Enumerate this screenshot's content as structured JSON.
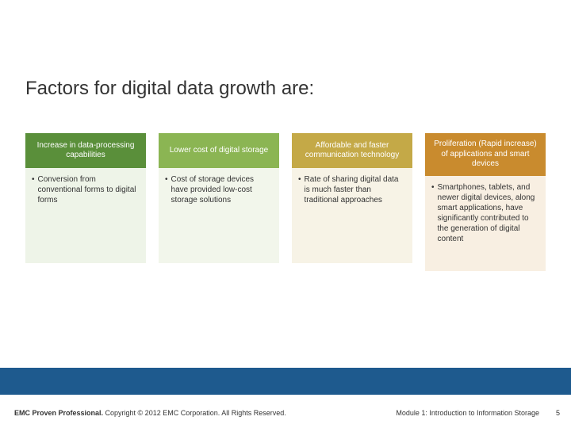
{
  "title": "Factors for digital data growth are:",
  "columns": [
    {
      "header": "Increase in data-processing capabilities",
      "header_bg": "#5a8f3a",
      "body_bg": "#eef4e8",
      "bullet": "Conversion from conventional forms to digital forms"
    },
    {
      "header": "Lower cost of digital storage",
      "header_bg": "#8bb553",
      "body_bg": "#f2f6eb",
      "bullet": "Cost of storage devices have provided low-cost storage solutions"
    },
    {
      "header": "Affordable and faster communication technology",
      "header_bg": "#c4a947",
      "body_bg": "#f7f3e6",
      "bullet": "Rate of sharing digital data is much faster than traditional approaches"
    },
    {
      "header": "Proliferation (Rapid increase) of applications and smart devices",
      "header_bg": "#c98b2e",
      "body_bg": "#f8efe2",
      "bullet": "Smartphones, tablets, and newer digital devices, along smart applications, have significantly contributed to the generation of digital content"
    }
  ],
  "footer": {
    "brand_bold": "EMC Proven Professional.",
    "copyright": " Copyright © 2012 EMC Corporation. All Rights Reserved.",
    "module": "Module 1: Introduction to Information Storage",
    "page": "5",
    "bar_color": "#1e5a8e"
  }
}
